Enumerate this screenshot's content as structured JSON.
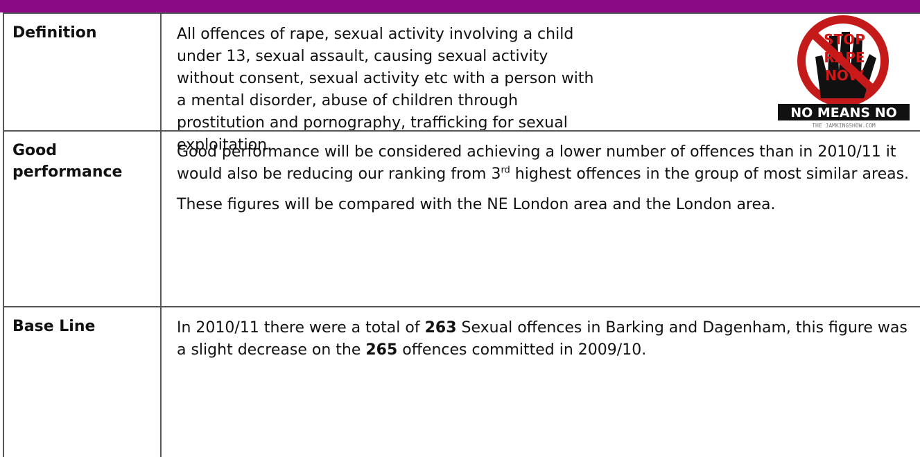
{
  "table": {
    "rows": [
      {
        "label": "Definition",
        "paragraphs": [
          [
            {
              "text": "All offences of rape, sexual activity involving a child under 13, sexual assault, causing sexual activity without consent, sexual activity etc with a person with a mental disorder, abuse of children through prostitution and pornography, trafficking for sexual exploitation."
            }
          ]
        ],
        "image": {
          "top": "STOP",
          "middle": "RAPE",
          "bottom": "NOW",
          "banner": "NO MEANS NO",
          "credit": "THE JAMKINGSHOW.COM"
        }
      },
      {
        "label": "Good performance",
        "paragraphs": [
          [
            {
              "text": "Good performance will be considered achieving a lower number of offences than in 2010/11 it would also be reducing our ranking from 3"
            },
            {
              "text": "rd",
              "style": "sup"
            },
            {
              "text": " highest offences in the group of most similar areas."
            }
          ],
          [
            {
              "text": "These figures will be compared with the NE London area and the London area."
            }
          ]
        ]
      },
      {
        "label": "Base Line",
        "paragraphs": [
          [
            {
              "text": "In 2010/11 there were a total of "
            },
            {
              "text": "263",
              "style": "bold"
            },
            {
              "text": " Sexual offences in Barking and Dagenham, this figure was a slight decrease on the "
            },
            {
              "text": "265",
              "style": "bold"
            },
            {
              "text": " offences committed in 2009/10."
            }
          ]
        ]
      }
    ]
  }
}
